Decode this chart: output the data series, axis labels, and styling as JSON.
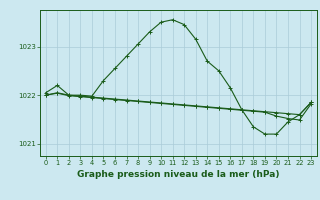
{
  "title": "Graphe pression niveau de la mer (hPa)",
  "bg_color": "#cce8f0",
  "grid_color": "#aaccd8",
  "line_color": "#1a5c1a",
  "xlabel_color": "#1a5c1a",
  "x_hours": [
    0,
    1,
    2,
    3,
    4,
    5,
    6,
    7,
    8,
    9,
    10,
    11,
    12,
    13,
    14,
    15,
    16,
    17,
    18,
    19,
    20,
    21,
    22,
    23
  ],
  "series1": [
    1022.05,
    1022.2,
    1022.0,
    1022.0,
    1021.98,
    1022.3,
    1022.55,
    1022.8,
    1023.05,
    1023.3,
    1023.5,
    1023.55,
    1023.45,
    1023.15,
    1022.7,
    1022.5,
    1022.15,
    1021.7,
    1021.35,
    1021.2,
    1021.2,
    1021.45,
    1021.6,
    1021.85
  ],
  "series2": [
    1022.0,
    1022.05,
    1022.0,
    1021.98,
    1021.96,
    1021.94,
    1021.92,
    1021.9,
    1021.88,
    1021.86,
    1021.84,
    1021.82,
    1021.8,
    1021.78,
    1021.76,
    1021.74,
    1021.72,
    1021.7,
    1021.68,
    1021.66,
    1021.64,
    1021.62,
    1021.6,
    1021.85
  ],
  "series3": [
    1022.0,
    1022.04,
    1021.99,
    1021.97,
    1021.95,
    1021.93,
    1021.91,
    1021.89,
    1021.87,
    1021.85,
    1021.83,
    1021.81,
    1021.79,
    1021.77,
    1021.75,
    1021.73,
    1021.71,
    1021.69,
    1021.67,
    1021.65,
    1021.57,
    1021.52,
    1021.49,
    1021.82
  ],
  "ylim": [
    1020.75,
    1023.75
  ],
  "yticks": [
    1021,
    1022,
    1023
  ],
  "marker": "+",
  "markersize": 3,
  "linewidth": 0.8,
  "title_fontsize": 6.5,
  "tick_fontsize": 5.0
}
